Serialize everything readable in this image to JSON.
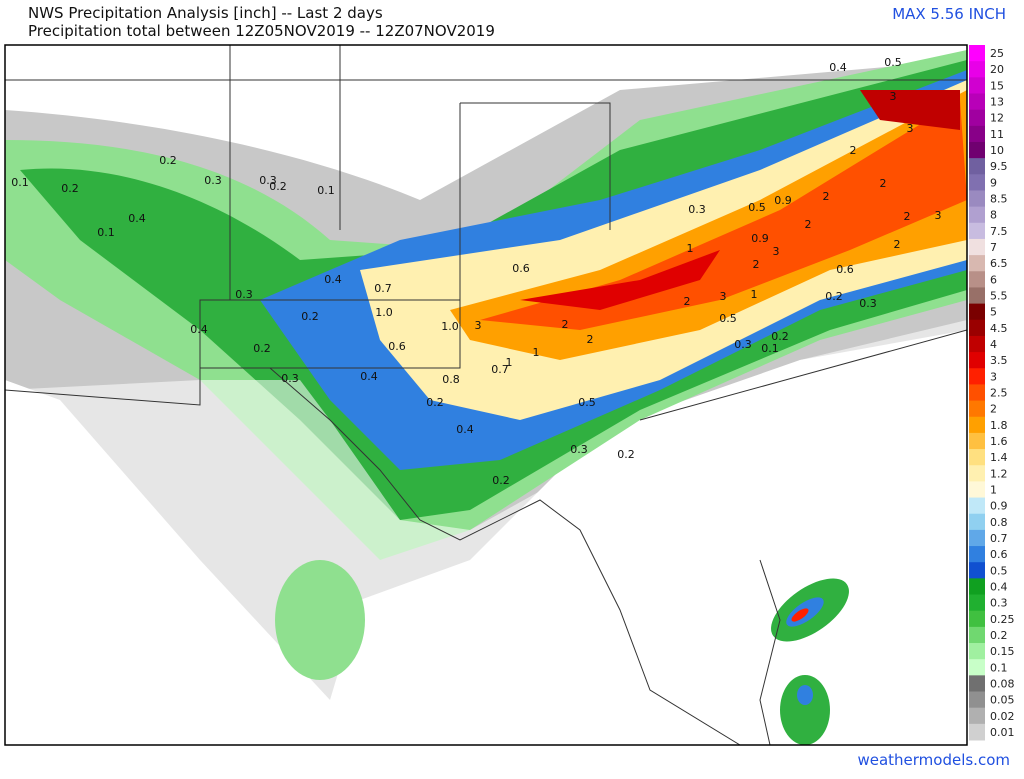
{
  "header": {
    "title": "NWS Precipitation Analysis [inch] -- Last 2 days",
    "subtitle": "Precipitation total between 12Z05NOV2019 -- 12Z07NOV2019",
    "max": "MAX 5.56 INCH"
  },
  "legend": {
    "labels": [
      "25",
      "20",
      "15",
      "13",
      "12",
      "11",
      "10",
      "9.5",
      "9",
      "8.5",
      "8",
      "7.5",
      "7",
      "6.5",
      "6",
      "5.5",
      "5",
      "4.5",
      "4",
      "3.5",
      "3",
      "2.5",
      "2",
      "1.8",
      "1.6",
      "1.4",
      "1.2",
      "1",
      "0.9",
      "0.8",
      "0.7",
      "0.6",
      "0.5",
      "0.4",
      "0.3",
      "0.25",
      "0.2",
      "0.15",
      "0.1",
      "0.08",
      "0.05",
      "0.02",
      "0.01"
    ],
    "colors": [
      "#ff00ff",
      "#e800e8",
      "#d000d0",
      "#b800b8",
      "#a000a0",
      "#880088",
      "#700070",
      "#7060a0",
      "#8070b0",
      "#9a8ac0",
      "#b0a0d0",
      "#c8bce0",
      "#f0e0e0",
      "#d8b8b0",
      "#b89088",
      "#987068",
      "#7a0000",
      "#9a0000",
      "#c00000",
      "#e00000",
      "#ff2000",
      "#ff5000",
      "#ff7800",
      "#ffa000",
      "#ffc040",
      "#ffe080",
      "#fff0b0",
      "#fff8d8",
      "#c0e8f8",
      "#90d0f0",
      "#60a8e8",
      "#3080e0",
      "#1050d0",
      "#10a020",
      "#20b030",
      "#40c040",
      "#70d870",
      "#a0f0a0",
      "#c8ffc8",
      "#707070",
      "#909090",
      "#b0b0b0",
      "#d0d0d0"
    ]
  },
  "map": {
    "labels": [
      "0.1",
      "0.2",
      "0.2",
      "0.4",
      "0.1",
      "0.3",
      "0.3",
      "0.2",
      "0.1",
      "0.3",
      "0.4",
      "0.2",
      "0.2",
      "0.3",
      "0.4",
      "0.7",
      "1.0",
      "0.6",
      "0.4",
      "0.8",
      "0.2",
      "0.4",
      "0.3",
      "0.2",
      "0.2",
      "0.5",
      "1",
      "0.7",
      "1",
      "2",
      "2",
      "3",
      "1.0",
      "0.6",
      "2",
      "3",
      "1",
      "2",
      "3",
      "2",
      "1",
      "0.5",
      "0.3",
      "0.6",
      "0.3",
      "0.2",
      "0.2",
      "0.1",
      "0.3",
      "0.5",
      "0.9",
      "2",
      "2",
      "2",
      "3",
      "3",
      "2",
      "3",
      "0.4",
      "0.5",
      "0.9",
      "2"
    ]
  },
  "footer": {
    "watermark": "weathermodels.com"
  }
}
